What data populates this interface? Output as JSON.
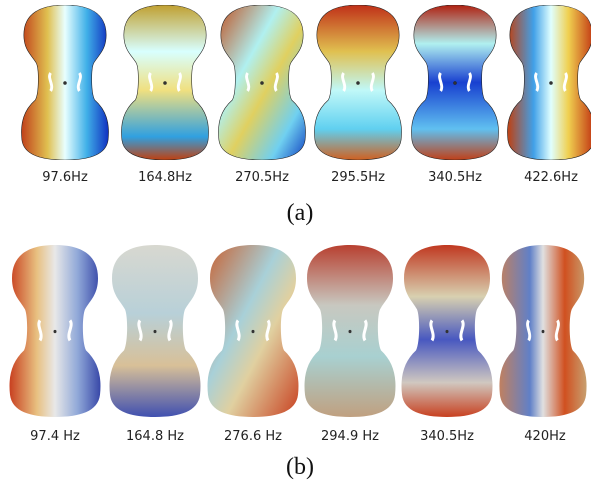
{
  "panels": [
    {
      "label": "(a)",
      "items": [
        "97.6Hz",
        "164.8Hz",
        "270.5Hz",
        "295.5Hz",
        "340.5Hz",
        "422.6Hz"
      ]
    },
    {
      "label": "(b)",
      "items": [
        "97.4 Hz",
        "164.8 Hz",
        "276.6 Hz",
        "294.9 Hz",
        "340.5Hz",
        "420Hz"
      ]
    }
  ]
}
